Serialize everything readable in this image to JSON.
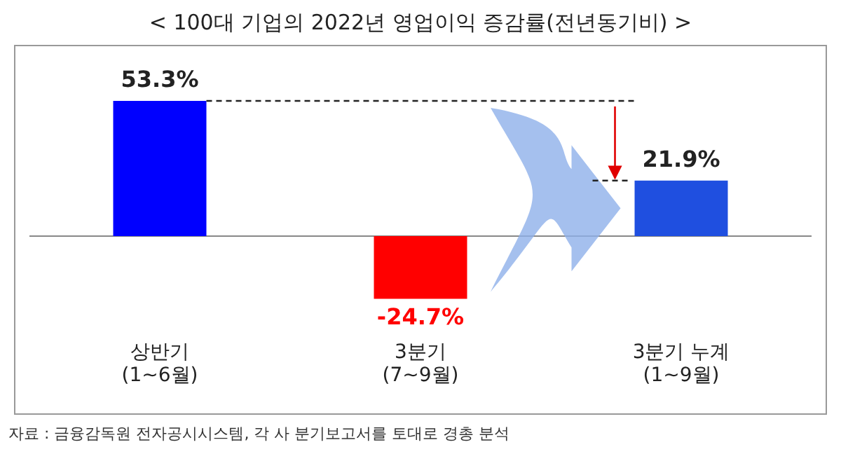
{
  "chart_data": {
    "type": "bar",
    "title": "< 100대 기업의 2022년 영업이익 증감률(전년동기비) >",
    "categories": [
      "상반기\n(1~6월)",
      "3분기\n(7~9월)",
      "3분기 누계\n(1~9월)"
    ],
    "values": [
      53.3,
      -24.7,
      21.9
    ],
    "colors": [
      "#0000ff",
      "#ff0000",
      "#1f4fe0"
    ],
    "value_labels": [
      "53.3%",
      "-24.7%",
      "21.9%"
    ],
    "grid": false,
    "legend": false,
    "annotations": [
      "자료 : 금융감독원 전자공시시스템, 각 사 분기보고서를 토대로 경총 분석"
    ]
  }
}
